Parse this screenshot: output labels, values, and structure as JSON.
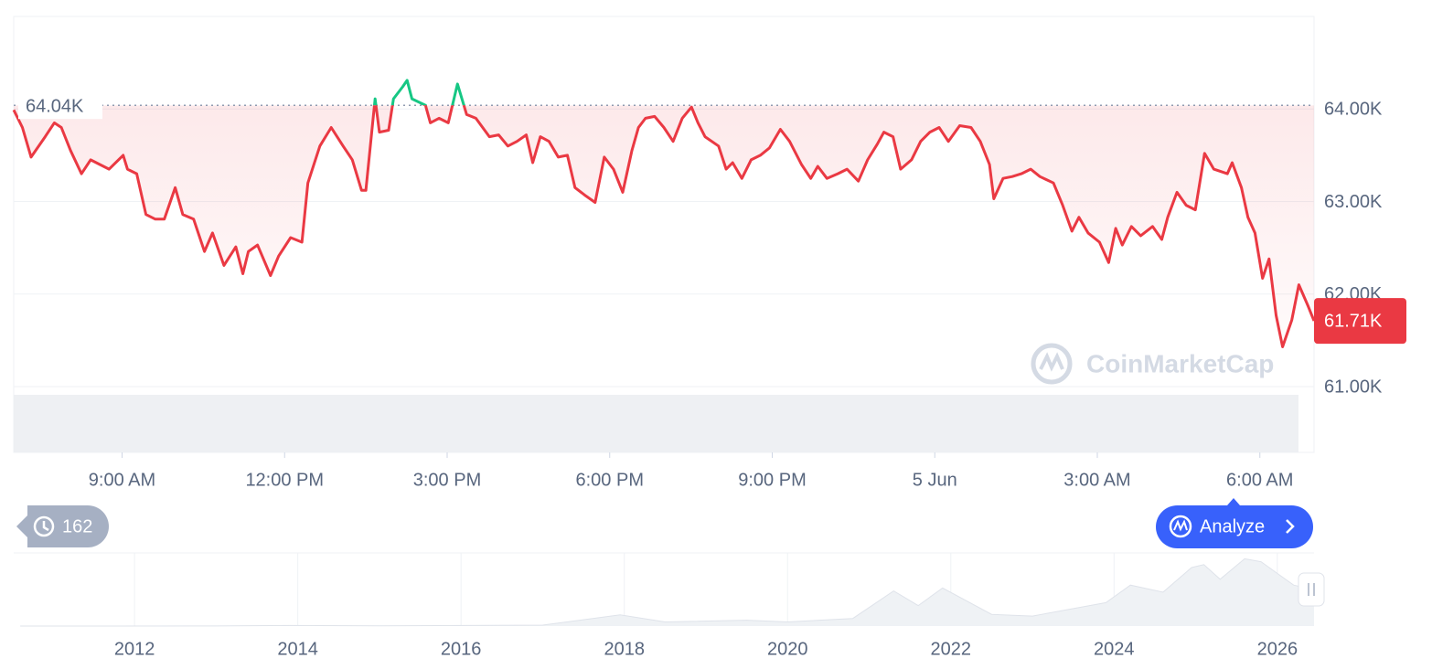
{
  "chart_data": [
    {
      "type": "line",
      "x": [
        7.0,
        7.16,
        7.32,
        7.58,
        7.75,
        7.88,
        8.05,
        8.25,
        8.42,
        8.59,
        8.76,
        9.02,
        9.1,
        9.27,
        9.44,
        9.61,
        9.78,
        9.98,
        10.12,
        10.32,
        10.52,
        10.67,
        10.88,
        11.1,
        11.23,
        11.33,
        11.5,
        11.74,
        11.89,
        12.11,
        12.32,
        12.43,
        12.65,
        12.86,
        13.08,
        13.25,
        13.42,
        13.5,
        13.67,
        13.75,
        13.92,
        14.01,
        14.18,
        14.26,
        14.35,
        14.6,
        14.69,
        14.85,
        15.02,
        15.19,
        15.36,
        15.53,
        15.78,
        15.95,
        16.12,
        16.29,
        16.46,
        16.58,
        16.72,
        16.88,
        17.05,
        17.22,
        17.36,
        17.56,
        17.73,
        17.9,
        18.07,
        18.24,
        18.41,
        18.53,
        18.66,
        18.83,
        19.0,
        19.17,
        19.34,
        19.51,
        19.63,
        19.76,
        20.01,
        20.15,
        20.27,
        20.44,
        20.61,
        20.78,
        20.95,
        21.15,
        21.32,
        21.54,
        21.71,
        21.84,
        22.01,
        22.21,
        22.38,
        22.59,
        22.76,
        22.94,
        23.06,
        23.23,
        23.37,
        23.57,
        23.74,
        23.91,
        24.08,
        24.25,
        24.46,
        24.67,
        24.84,
        25.01,
        25.09,
        25.26,
        25.43,
        25.6,
        25.77,
        25.94,
        26.19,
        26.36,
        26.53,
        26.66,
        26.83,
        27.04,
        27.21,
        27.34,
        27.46,
        27.63,
        27.8,
        28.02,
        28.19,
        28.3,
        28.47,
        28.64,
        28.81,
        28.98,
        29.15,
        29.4,
        29.49,
        29.66,
        29.78,
        29.91,
        30.05,
        30.17,
        30.3,
        30.42,
        30.59,
        30.72,
        30.89,
        31.0
      ],
      "series": [
        {
          "color": "#ea3943",
          "color_above": "#16c784",
          "values": [
            63990,
            63800,
            63480,
            63700,
            63850,
            63800,
            63550,
            63300,
            63450,
            63400,
            63350,
            63500,
            63350,
            63300,
            62860,
            62810,
            62810,
            63150,
            62860,
            62810,
            62460,
            62660,
            62310,
            62510,
            62220,
            62460,
            62530,
            62200,
            62410,
            62610,
            62560,
            63200,
            63600,
            63800,
            63600,
            63450,
            63120,
            63120,
            64110,
            63750,
            63770,
            64110,
            64240,
            64310,
            64110,
            64040,
            63850,
            63900,
            63850,
            64270,
            63940,
            63900,
            63700,
            63720,
            63600,
            63650,
            63720,
            63420,
            63700,
            63650,
            63480,
            63500,
            63150,
            63060,
            62990,
            63480,
            63350,
            63100,
            63550,
            63800,
            63900,
            63920,
            63800,
            63650,
            63900,
            64020,
            63850,
            63700,
            63600,
            63350,
            63420,
            63250,
            63450,
            63500,
            63580,
            63780,
            63650,
            63400,
            63250,
            63380,
            63250,
            63300,
            63350,
            63220,
            63450,
            63620,
            63750,
            63700,
            63350,
            63450,
            63650,
            63750,
            63800,
            63650,
            63820,
            63800,
            63650,
            63400,
            63030,
            63250,
            63270,
            63300,
            63350,
            63270,
            63200,
            62960,
            62680,
            62830,
            62660,
            62560,
            62340,
            62710,
            62530,
            62730,
            62630,
            62730,
            62590,
            62830,
            63100,
            62960,
            62910,
            63520,
            63350,
            63300,
            63420,
            63150,
            62830,
            62660,
            62170,
            62380,
            61770,
            61430,
            61720,
            62100,
            61870,
            61710
          ]
        }
      ],
      "xlim": [
        7,
        31
      ],
      "xticks": [
        {
          "value": 9,
          "label": "9:00 AM"
        },
        {
          "value": 12,
          "label": "12:00 PM"
        },
        {
          "value": 15,
          "label": "3:00 PM"
        },
        {
          "value": 18,
          "label": "6:00 PM"
        },
        {
          "value": 21,
          "label": "9:00 PM"
        },
        {
          "value": 24,
          "label": "5 Jun"
        },
        {
          "value": 27,
          "label": "3:00 AM"
        },
        {
          "value": 30,
          "label": "6:00 AM"
        }
      ],
      "ylim": [
        61000,
        65000
      ],
      "yticks": [
        {
          "value": 61000,
          "label": "61.00K"
        },
        {
          "value": 62000,
          "label": "62.00K"
        },
        {
          "value": 63000,
          "label": "63.00K"
        },
        {
          "value": 64000,
          "label": "64.00K"
        }
      ],
      "reference": 64040,
      "reference_label": "64.04K",
      "last_value_label": "61.71K",
      "grid": true
    },
    {
      "type": "area",
      "x": [
        2010.6,
        2013.0,
        2013.9,
        2015.0,
        2017.0,
        2017.95,
        2018.5,
        2019.5,
        2020.0,
        2020.8,
        2021.3,
        2021.6,
        2021.9,
        2022.5,
        2023.0,
        2023.9,
        2024.2,
        2024.6,
        2024.95,
        2025.1,
        2025.3,
        2025.6,
        2025.8,
        2026.0,
        2026.2,
        2026.45
      ],
      "series": [
        {
          "color": "#eff2f5",
          "values": [
            0,
            100,
            1000,
            300,
            1500,
            19000,
            7000,
            10000,
            7000,
            13000,
            60000,
            35000,
            65000,
            20000,
            17000,
            40000,
            70000,
            58000,
            100000,
            105000,
            80000,
            115000,
            110000,
            90000,
            70000,
            62000
          ]
        }
      ],
      "xlim": [
        2010.52,
        2026.45
      ],
      "xticks": [
        2012,
        2014,
        2016,
        2018,
        2020,
        2022,
        2024,
        2026
      ],
      "ylim": [
        0,
        125000
      ],
      "grid": true
    }
  ],
  "ui": {
    "history_count": "162",
    "analyze": "Analyze",
    "watermark": "CoinMarketCap"
  }
}
